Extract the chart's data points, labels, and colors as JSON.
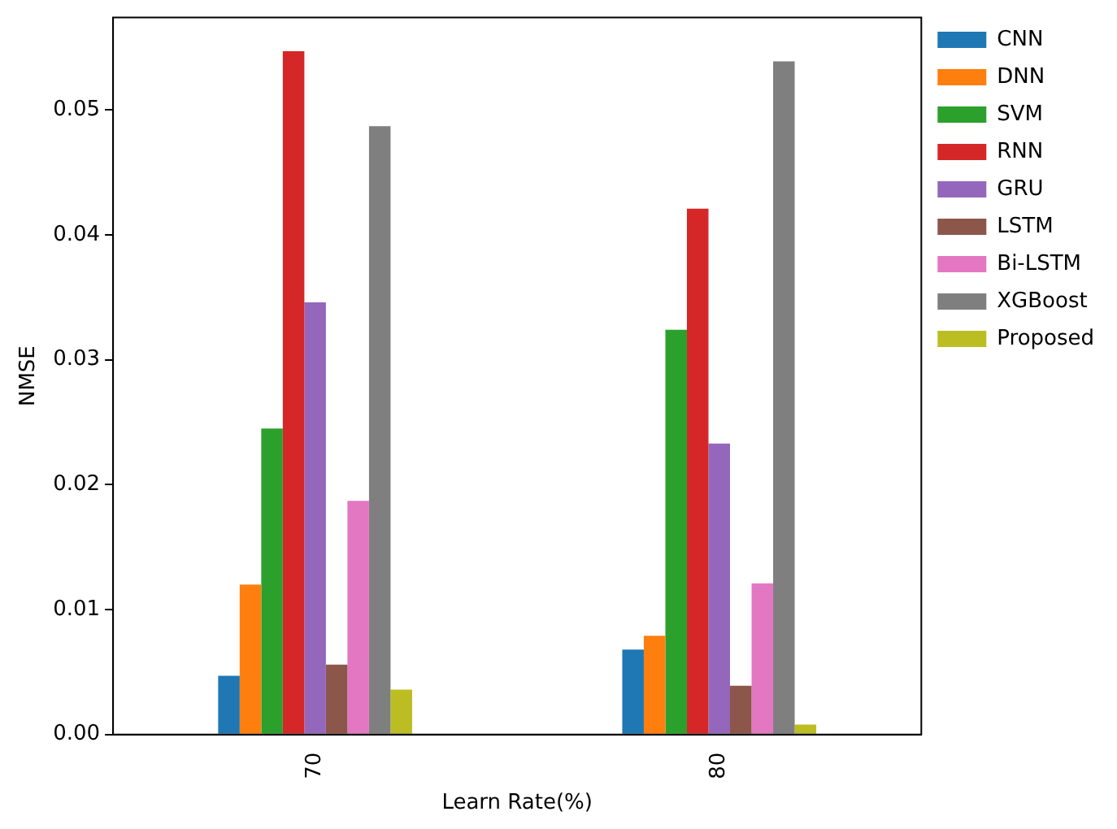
{
  "chart_data": {
    "type": "bar",
    "xlabel": "Learn Rate(%)",
    "ylabel": "NMSE",
    "categories": [
      "70",
      "80"
    ],
    "series": [
      {
        "name": "CNN",
        "color": "#1f77b4",
        "values": [
          0.0047,
          0.0068
        ]
      },
      {
        "name": "DNN",
        "color": "#ff7f0e",
        "values": [
          0.012,
          0.0079
        ]
      },
      {
        "name": "SVM",
        "color": "#2ca02c",
        "values": [
          0.0245,
          0.0324
        ]
      },
      {
        "name": "RNN",
        "color": "#d62728",
        "values": [
          0.0547,
          0.0421
        ]
      },
      {
        "name": "GRU",
        "color": "#9467bd",
        "values": [
          0.0346,
          0.0233
        ]
      },
      {
        "name": "LSTM",
        "color": "#8c564b",
        "values": [
          0.0056,
          0.0039
        ]
      },
      {
        "name": "Bi-LSTM",
        "color": "#e377c2",
        "values": [
          0.0187,
          0.0121
        ]
      },
      {
        "name": "XGBoost",
        "color": "#7f7f7f",
        "values": [
          0.0487,
          0.0539
        ]
      },
      {
        "name": "Proposed",
        "color": "#bcbd22",
        "values": [
          0.0036,
          0.0008
        ]
      }
    ],
    "ylim": [
      0,
      0.0574
    ],
    "yticks": [
      {
        "value": 0,
        "label": "0.00"
      },
      0.01,
      0.02,
      0.03,
      0.04,
      0.05
    ],
    "grid": false,
    "legend": "right"
  }
}
